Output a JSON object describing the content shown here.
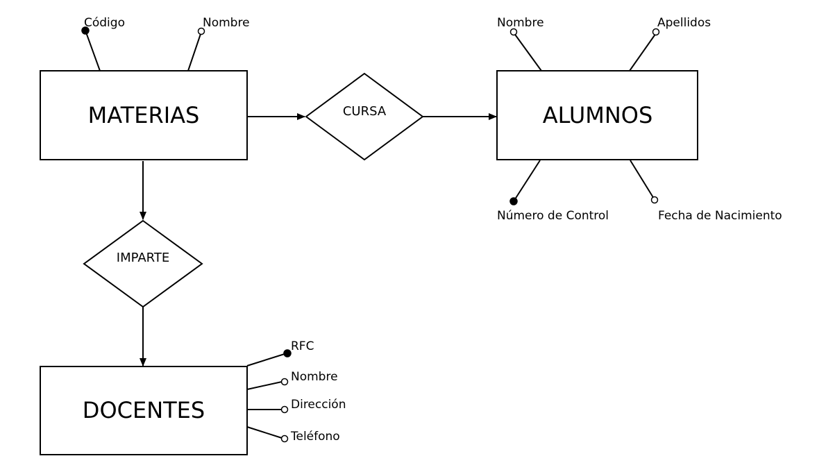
{
  "entities": {
    "materias": {
      "label": "MATERIAS"
    },
    "alumnos": {
      "label": "ALUMNOS"
    },
    "docentes": {
      "label": "DOCENTES"
    }
  },
  "relationships": {
    "cursa": {
      "label": "CURSA"
    },
    "imparte": {
      "label": "IMPARTE"
    }
  },
  "attributes": {
    "materias": {
      "codigo": {
        "label": "Código",
        "key": true
      },
      "nombre": {
        "label": "Nombre",
        "key": false
      }
    },
    "alumnos": {
      "nombre": {
        "label": "Nombre",
        "key": false
      },
      "apellidos": {
        "label": "Apellidos",
        "key": false
      },
      "numero_control": {
        "label": "Número de Control",
        "key": true
      },
      "fecha_nacimiento": {
        "label": "Fecha de Nacimiento",
        "key": false
      }
    },
    "docentes": {
      "rfc": {
        "label": "RFC",
        "key": true
      },
      "nombre": {
        "label": "Nombre",
        "key": false
      },
      "direccion": {
        "label": "Dirección",
        "key": false
      },
      "telefono": {
        "label": "Teléfono",
        "key": false
      }
    }
  }
}
